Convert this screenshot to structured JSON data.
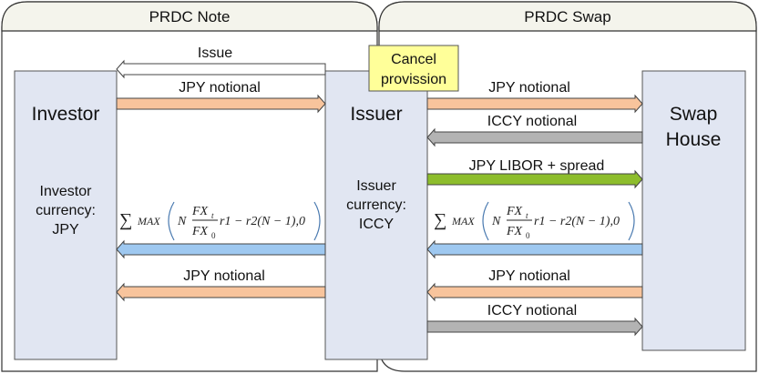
{
  "panels": {
    "note_title": "PRDC Note",
    "swap_title": "PRDC Swap"
  },
  "parties": {
    "investor": {
      "name": "Investor",
      "currency_line1": "Investor",
      "currency_line2": "currency:",
      "currency_line3": "JPY"
    },
    "issuer": {
      "name": "Issuer",
      "currency_line1": "Issuer",
      "currency_line2": "currency:",
      "currency_line3": "ICCY"
    },
    "swap_house": {
      "name_line1": "Swap",
      "name_line2": "House"
    }
  },
  "cancel_provision": {
    "line1": "Cancel",
    "line2": "provission"
  },
  "flows": {
    "issue": "Issue",
    "note_jpy_notional_in": "JPY notional",
    "swap_jpy_notional_out": "JPY notional",
    "swap_iccy_notional_in": "ICCY notional",
    "swap_libor": "JPY LIBOR + spread",
    "note_jpy_notional_back": "JPY notional",
    "swap_jpy_notional_back": "JPY notional",
    "swap_iccy_notional_back": "ICCY notional"
  },
  "formula": {
    "sum": "∑",
    "max": "MAX",
    "n": "N",
    "num": "FX",
    "num_sub": "t",
    "den": "FX",
    "den_sub": "0",
    "tail": "r1 − r2(N − 1),0"
  },
  "colors": {
    "orange": "#f8c49c",
    "gray": "#b3b3b3",
    "green": "#8dbd2c",
    "blue": "#9ec8f0",
    "party_box": "#e1e6f2",
    "cancel_box": "#ffff99",
    "header": "#f4f4ec"
  }
}
